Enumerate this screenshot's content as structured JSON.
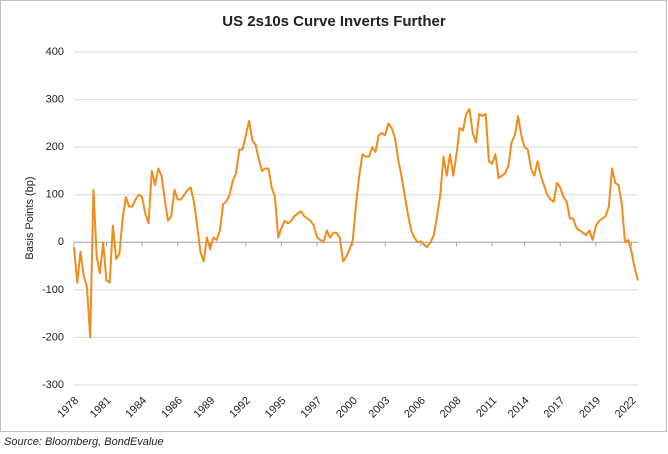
{
  "chart_data": {
    "type": "line",
    "title": "US 2s10s Curve Inverts Further",
    "y_label": "Basis Points  (bp)",
    "source": "Source: Bloomberg, BondEvalue",
    "categories": [
      "1978",
      null,
      null,
      null,
      null,
      null,
      null,
      null,
      null,
      null,
      "1981",
      null,
      null,
      null,
      null,
      null,
      null,
      null,
      null,
      null,
      null,
      "1984",
      null,
      null,
      null,
      null,
      null,
      null,
      null,
      null,
      null,
      null,
      "1986",
      null,
      null,
      null,
      null,
      null,
      null,
      null,
      null,
      null,
      "1989",
      null,
      null,
      null,
      null,
      null,
      null,
      null,
      null,
      null,
      null,
      "1992",
      null,
      null,
      null,
      null,
      null,
      null,
      null,
      null,
      null,
      null,
      "1995",
      null,
      null,
      null,
      null,
      null,
      null,
      null,
      null,
      null,
      null,
      "1997",
      null,
      null,
      null,
      null,
      null,
      null,
      null,
      null,
      null,
      null,
      "2000",
      null,
      null,
      null,
      null,
      null,
      null,
      null,
      null,
      null,
      "2003",
      null,
      null,
      null,
      null,
      null,
      null,
      null,
      null,
      null,
      null,
      "2006",
      null,
      null,
      null,
      null,
      null,
      null,
      null,
      null,
      null,
      null,
      "2008",
      null,
      null,
      null,
      null,
      null,
      null,
      null,
      null,
      null,
      null,
      "2011",
      null,
      null,
      null,
      null,
      null,
      null,
      null,
      null,
      null,
      "2014",
      null,
      null,
      null,
      null,
      null,
      null,
      null,
      null,
      null,
      null,
      "2017",
      null,
      null,
      null,
      null,
      null,
      null,
      null,
      null,
      null,
      null,
      "2019",
      null,
      null,
      null,
      null,
      null,
      null,
      null,
      null,
      null,
      null,
      "2022",
      null,
      null
    ],
    "series": [
      {
        "name": "US 2s10s",
        "color": "#f08c1c",
        "values": [
          -10,
          -85,
          -20,
          -70,
          -95,
          -200,
          110,
          -30,
          -65,
          0,
          -80,
          -85,
          35,
          -35,
          -25,
          50,
          95,
          75,
          75,
          90,
          100,
          95,
          60,
          40,
          150,
          120,
          155,
          140,
          90,
          45,
          55,
          110,
          90,
          90,
          100,
          110,
          115,
          85,
          35,
          -20,
          -40,
          10,
          -15,
          10,
          5,
          25,
          80,
          85,
          100,
          130,
          145,
          195,
          195,
          225,
          255,
          215,
          205,
          175,
          150,
          155,
          155,
          115,
          95,
          10,
          30,
          45,
          40,
          45,
          55,
          60,
          65,
          55,
          50,
          45,
          35,
          10,
          5,
          0,
          25,
          10,
          20,
          20,
          10,
          -40,
          -30,
          -15,
          5,
          80,
          140,
          185,
          180,
          180,
          200,
          190,
          225,
          230,
          225,
          250,
          240,
          220,
          175,
          140,
          100,
          60,
          25,
          10,
          0,
          2,
          -5,
          -10,
          0,
          15,
          55,
          100,
          180,
          140,
          185,
          140,
          185,
          240,
          235,
          270,
          280,
          230,
          210,
          270,
          265,
          270,
          170,
          165,
          185,
          135,
          140,
          145,
          160,
          210,
          225,
          265,
          225,
          200,
          195,
          155,
          140,
          170,
          140,
          120,
          100,
          90,
          85,
          125,
          115,
          95,
          85,
          50,
          50,
          30,
          25,
          20,
          15,
          25,
          5,
          35,
          45,
          50,
          55,
          75,
          155,
          125,
          120,
          80,
          0,
          5,
          -20,
          -55,
          -80
        ]
      }
    ],
    "ylim": [
      -300,
      400
    ],
    "yticks": [
      -300,
      -200,
      -100,
      0,
      100,
      200,
      300,
      400
    ],
    "grid": true
  }
}
